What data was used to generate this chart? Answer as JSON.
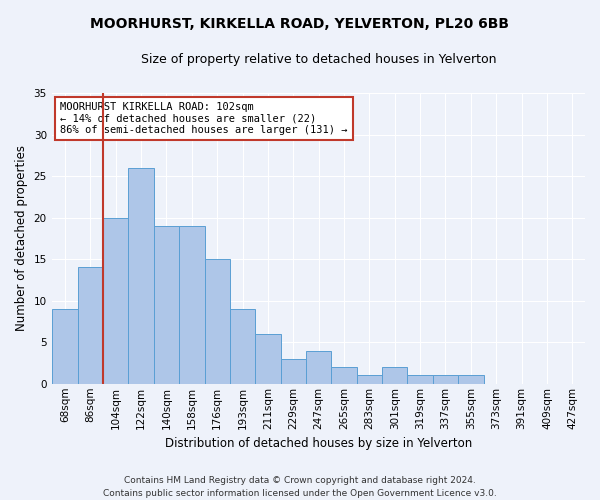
{
  "title": "MOORHURST, KIRKELLA ROAD, YELVERTON, PL20 6BB",
  "subtitle": "Size of property relative to detached houses in Yelverton",
  "xlabel": "Distribution of detached houses by size in Yelverton",
  "ylabel": "Number of detached properties",
  "bar_labels": [
    "68sqm",
    "86sqm",
    "104sqm",
    "122sqm",
    "140sqm",
    "158sqm",
    "176sqm",
    "193sqm",
    "211sqm",
    "229sqm",
    "247sqm",
    "265sqm",
    "283sqm",
    "301sqm",
    "319sqm",
    "337sqm",
    "355sqm",
    "373sqm",
    "391sqm",
    "409sqm",
    "427sqm"
  ],
  "bar_values": [
    9,
    14,
    20,
    26,
    19,
    19,
    15,
    9,
    6,
    3,
    4,
    2,
    1,
    2,
    1,
    1,
    1,
    0,
    0,
    0,
    0
  ],
  "bar_color": "#aec6e8",
  "bar_edge_color": "#5a9fd4",
  "property_line_color": "#c0392b",
  "annotation_text": "MOORHURST KIRKELLA ROAD: 102sqm\n← 14% of detached houses are smaller (22)\n86% of semi-detached houses are larger (131) →",
  "annotation_box_color": "#ffffff",
  "annotation_box_edge": "#c0392b",
  "footnote": "Contains HM Land Registry data © Crown copyright and database right 2024.\nContains public sector information licensed under the Open Government Licence v3.0.",
  "ylim": [
    0,
    35
  ],
  "yticks": [
    0,
    5,
    10,
    15,
    20,
    25,
    30,
    35
  ],
  "background_color": "#eef2fa",
  "grid_color": "#ffffff",
  "title_fontsize": 10,
  "subtitle_fontsize": 9,
  "axis_label_fontsize": 8.5,
  "tick_fontsize": 7.5,
  "annotation_fontsize": 7.5,
  "footnote_fontsize": 6.5
}
